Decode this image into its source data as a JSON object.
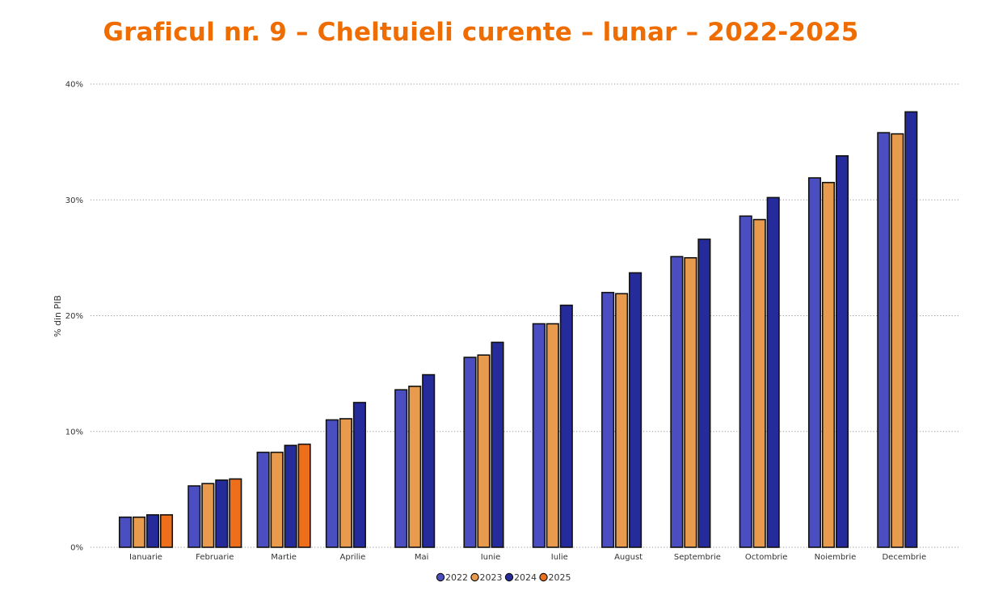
{
  "chart_data": {
    "type": "bar",
    "title": "Graficul nr. 9 – Cheltuieli curente – lunar – 2022-2025",
    "ylabel": "% din PIB",
    "xlabel": "",
    "ylim": [
      0,
      40
    ],
    "yticks": [
      "0%",
      "10%",
      "20%",
      "30%",
      "40%"
    ],
    "grid": true,
    "legend_position": "bottom-center",
    "categories": [
      "Ianuarie",
      "Februarie",
      "Martie",
      "Aprilie",
      "Mai",
      "Iunie",
      "Iulie",
      "August",
      "Septembrie",
      "Octombrie",
      "Noiembrie",
      "Decembrie"
    ],
    "series": [
      {
        "name": "2022",
        "color": "#4a4ec0",
        "values": [
          2.6,
          5.3,
          8.2,
          11.0,
          13.6,
          16.4,
          19.3,
          22.0,
          25.1,
          28.6,
          31.9,
          35.8
        ]
      },
      {
        "name": "2023",
        "color": "#e89a4d",
        "values": [
          2.6,
          5.5,
          8.2,
          11.1,
          13.9,
          16.6,
          19.3,
          21.9,
          25.0,
          28.3,
          31.5,
          35.7
        ]
      },
      {
        "name": "2024",
        "color": "#252b9a",
        "values": [
          2.8,
          5.8,
          8.8,
          12.5,
          14.9,
          17.7,
          20.9,
          23.7,
          26.6,
          30.2,
          33.8,
          37.6
        ]
      },
      {
        "name": "2025",
        "color": "#ed6f1c",
        "values": [
          2.8,
          5.9,
          8.9,
          null,
          null,
          null,
          null,
          null,
          null,
          null,
          null,
          null
        ]
      }
    ]
  }
}
